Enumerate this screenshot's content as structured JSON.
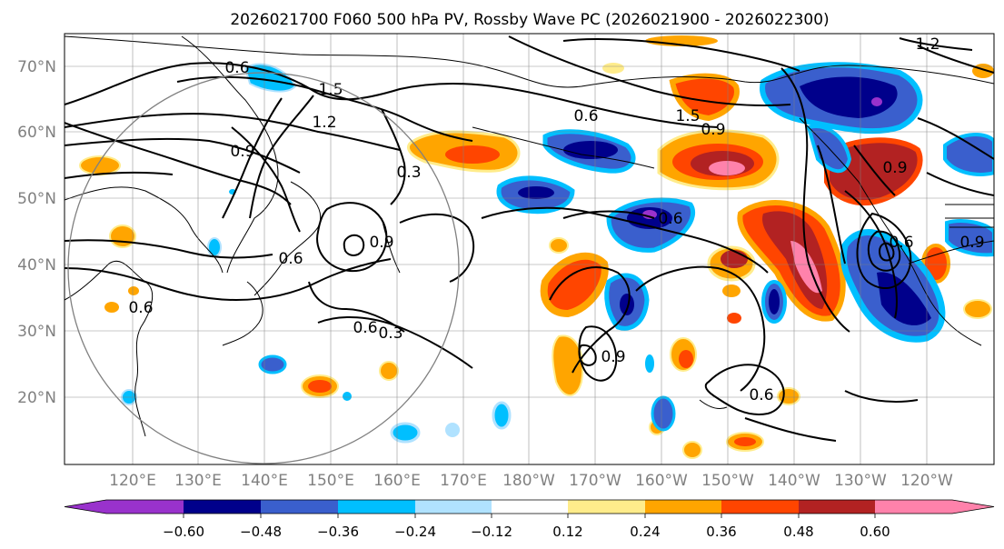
{
  "title": "2026021700 F060 500 hPa PV, Rossby Wave PC (2026021900 - 2026022300)",
  "map": {
    "lat_ticks": [
      "70°N",
      "60°N",
      "50°N",
      "40°N",
      "30°N",
      "20°N"
    ],
    "lon_ticks": [
      "120°E",
      "130°E",
      "140°E",
      "150°E",
      "160°E",
      "170°E",
      "180°W",
      "170°W",
      "160°W",
      "150°W",
      "140°W",
      "130°W",
      "120°W"
    ]
  },
  "contour_labels": {
    "a": "0.6",
    "b": "1.5",
    "c": "1.2",
    "d": "0.9",
    "e": "0.3",
    "f": "0.9",
    "g": "0.6",
    "h": "0.6",
    "i": "0.3",
    "j": "0.6",
    "k": "0.6",
    "l": "1.5",
    "m": "0.9",
    "n": "0.6",
    "o": "1.2",
    "p": "0.9",
    "q": "0.9",
    "r": "0.6",
    "s": "0.9",
    "t": "0.6"
  },
  "colorbar": {
    "ticks": [
      "−0.60",
      "−0.48",
      "−0.36",
      "−0.24",
      "−0.12",
      "0.12",
      "0.24",
      "0.36",
      "0.48",
      "0.60"
    ],
    "colors": [
      "#9932cc",
      "#00008b",
      "#3a5fcd",
      "#00bfff",
      "#b0e2ff",
      "#ffffff",
      "#ffec8b",
      "#ffa500",
      "#ff4500",
      "#b22222",
      "#ff82ab"
    ]
  }
}
